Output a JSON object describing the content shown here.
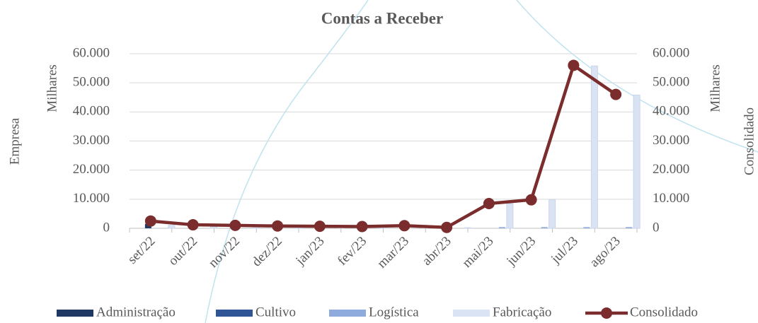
{
  "chart_data": {
    "type": "bar_line",
    "title": "Contas a Receber",
    "y_label": "Empresa",
    "y_units": "Milhares",
    "y2_label": "Consolidado",
    "y2_units": "Milhares",
    "categories": [
      "set/22",
      "out/22",
      "nov/22",
      "dez/22",
      "jan/23",
      "fev/23",
      "mar/23",
      "abr/23",
      "mai/23",
      "jun/23",
      "jul/23",
      "ago/23"
    ],
    "series": [
      {
        "name": "Administração",
        "color": "#1f3864",
        "type": "bar",
        "values": [
          1500,
          0,
          0,
          0,
          0,
          0,
          0,
          0,
          0,
          0,
          0,
          0
        ]
      },
      {
        "name": "Cultivo",
        "color": "#2f5597",
        "type": "bar",
        "values": [
          0,
          0,
          0,
          0,
          0,
          0,
          0,
          0,
          0,
          0,
          0,
          0
        ]
      },
      {
        "name": "Logística",
        "color": "#8faadc",
        "type": "bar",
        "values": [
          0,
          0,
          0,
          0,
          0,
          0,
          0,
          0,
          400,
          400,
          400,
          400
        ]
      },
      {
        "name": "Fabricação",
        "color": "#dae3f3",
        "type": "bar",
        "values": [
          1000,
          800,
          700,
          600,
          500,
          400,
          700,
          200,
          8500,
          9800,
          55800,
          45800
        ]
      },
      {
        "name": "Consolidado",
        "color": "#7b2c2c",
        "type": "line",
        "axis": "y2",
        "values": [
          2500,
          1200,
          1000,
          800,
          700,
          600,
          900,
          300,
          8500,
          9800,
          56000,
          46000
        ]
      }
    ],
    "ylim": [
      0,
      60000
    ],
    "yticks": [
      0,
      {
        "value": 10000,
        "label": "10.000"
      },
      {
        "value": 20000,
        "label": "20.000"
      },
      {
        "value": 30000,
        "label": "30.000"
      },
      {
        "value": 40000,
        "label": "40.000"
      },
      {
        "value": 50000,
        "label": "50.000"
      },
      {
        "value": 60000,
        "label": "60.000"
      }
    ],
    "y2lim": [
      0,
      60000
    ],
    "y2ticks": [
      0,
      {
        "value": 10000,
        "label": "10.000"
      },
      {
        "value": 20000,
        "label": "20.000"
      },
      {
        "value": 30000,
        "label": "30.000"
      },
      {
        "value": 40000,
        "label": "40.000"
      },
      {
        "value": 50000,
        "label": "50.000"
      },
      {
        "value": 60000,
        "label": "60.000"
      }
    ],
    "grid": true,
    "legend": "bottom"
  }
}
